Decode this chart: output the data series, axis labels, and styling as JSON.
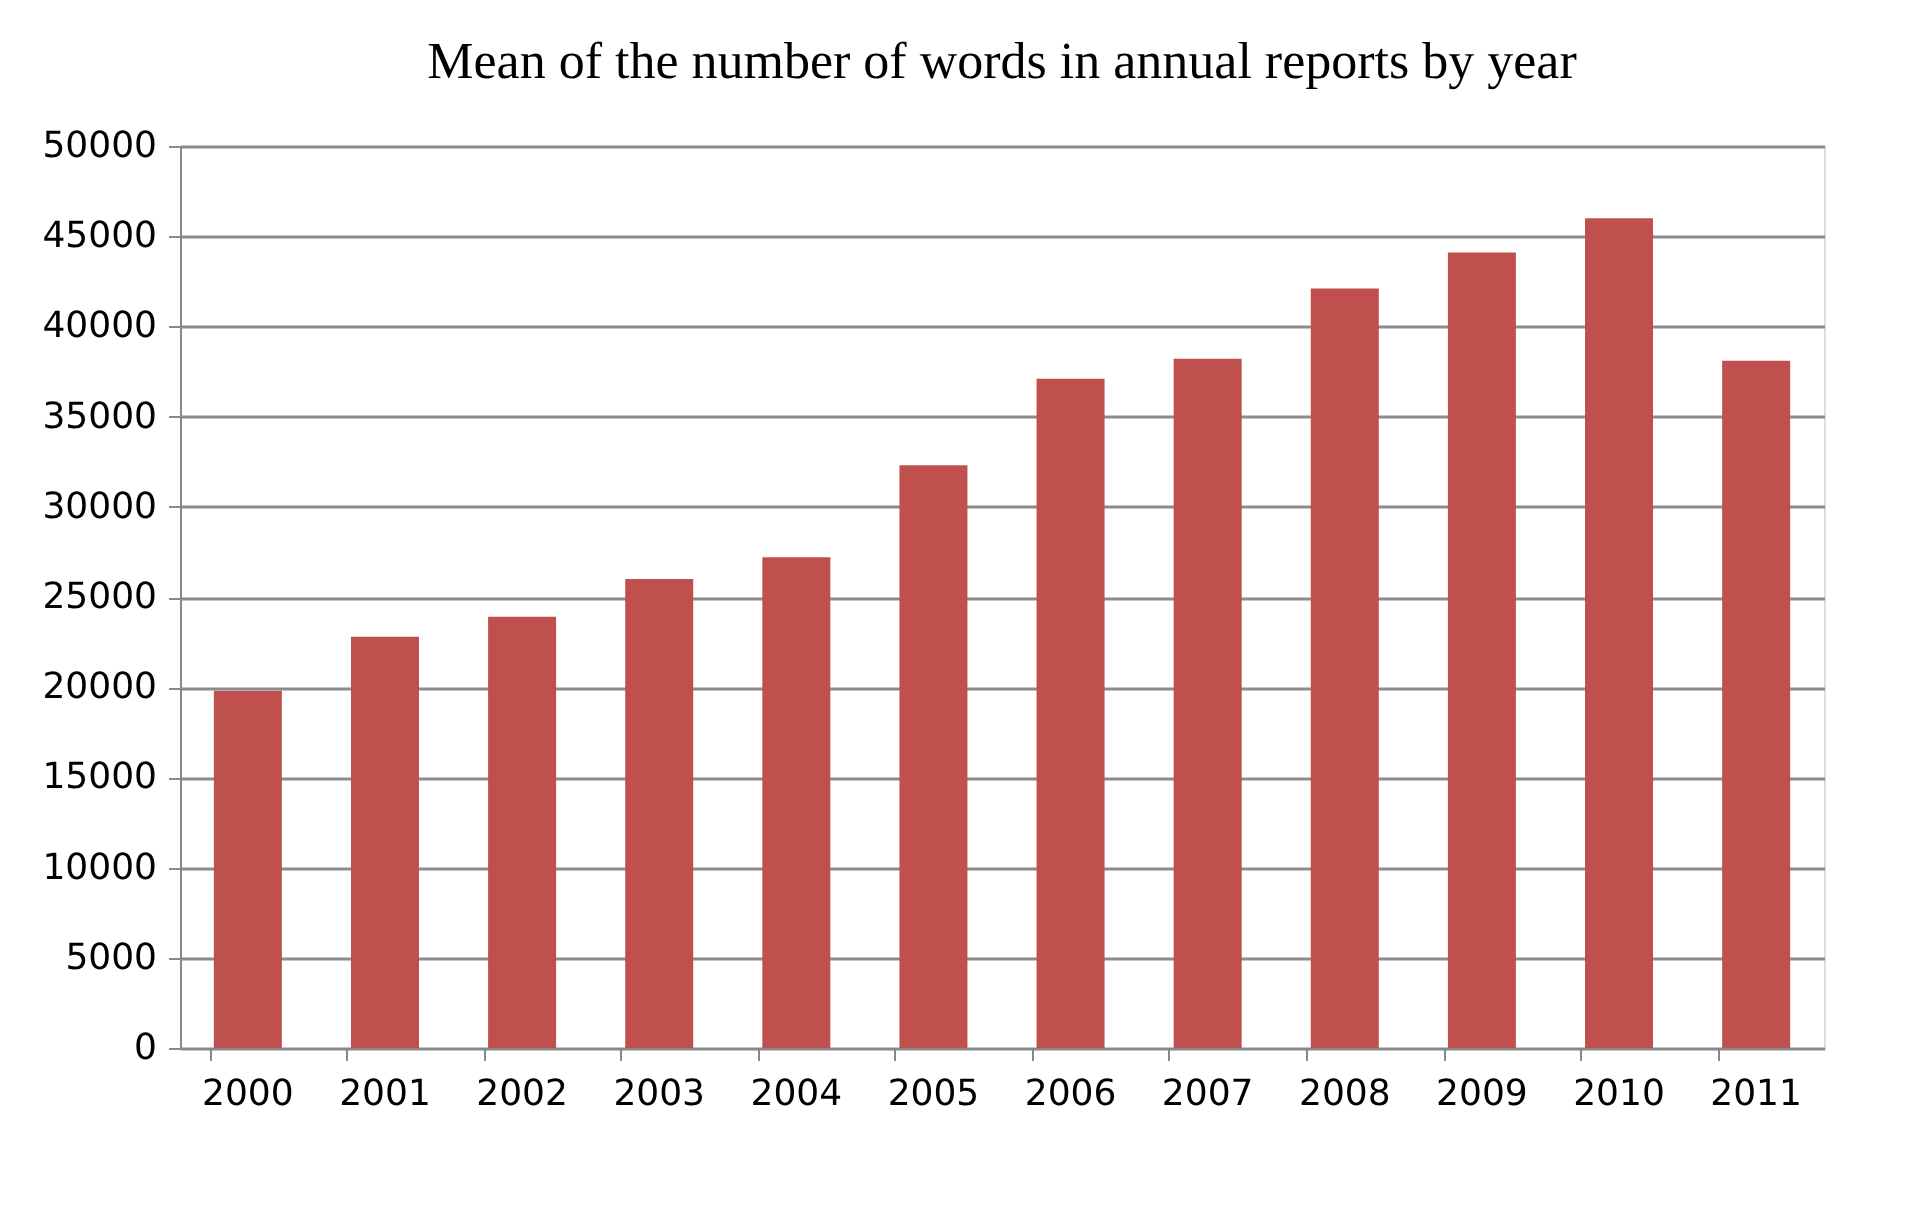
{
  "chart_data": {
    "type": "bar",
    "title": "Mean of the number of words in annual reports by year",
    "categories": [
      "2000",
      "2001",
      "2002",
      "2003",
      "2004",
      "2005",
      "2006",
      "2007",
      "2008",
      "2009",
      "2010",
      "2011"
    ],
    "values": [
      19800,
      22800,
      23900,
      26000,
      27200,
      32300,
      37100,
      38200,
      42100,
      44100,
      46000,
      38100
    ],
    "color": "#c0504d",
    "ylim": [
      0,
      50000
    ],
    "yticks": [
      0,
      5000,
      10000,
      15000,
      20000,
      25000,
      30000,
      35000,
      40000,
      45000,
      50000
    ],
    "grid": "y"
  }
}
